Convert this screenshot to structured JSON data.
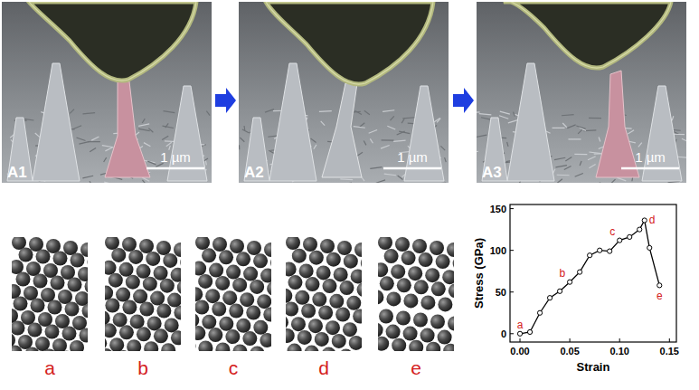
{
  "panels": [
    {
      "label": "A1",
      "scale_bar": "1 µm"
    },
    {
      "label": "A2",
      "scale_bar": "1 µm"
    },
    {
      "label": "A3",
      "scale_bar": "1 µm"
    }
  ],
  "atom_panels": {
    "labels": [
      "a",
      "b",
      "c",
      "d",
      "e"
    ]
  },
  "chart_data": {
    "type": "line",
    "x_label": "Strain",
    "y_label": "Stress (GPa)",
    "x": [
      0,
      0.01,
      0.02,
      0.03,
      0.04,
      0.05,
      0.06,
      0.07,
      0.08,
      0.09,
      0.1,
      0.11,
      0.12,
      0.125,
      0.13,
      0.14
    ],
    "values": [
      0,
      2,
      25,
      43,
      51,
      62,
      74,
      94,
      100,
      99,
      112,
      116,
      125,
      136,
      103,
      58
    ],
    "point_labels": [
      "a",
      null,
      null,
      null,
      null,
      "b",
      null,
      null,
      null,
      null,
      "c",
      null,
      null,
      "d",
      null,
      "e"
    ],
    "color": "#000000",
    "marker": "circle",
    "line_style": "solid",
    "xlim": [
      -0.01,
      0.157
    ],
    "ylim": [
      -10,
      155
    ],
    "xticks": [
      {
        "value": 0,
        "label": "0.00"
      },
      {
        "value": 0.05,
        "label": "0.05"
      },
      {
        "value": 0.1,
        "label": "0.10"
      },
      {
        "value": 0.15,
        "label": "0.15"
      }
    ],
    "yticks": [
      0,
      50,
      100,
      150
    ],
    "grid": false
  }
}
